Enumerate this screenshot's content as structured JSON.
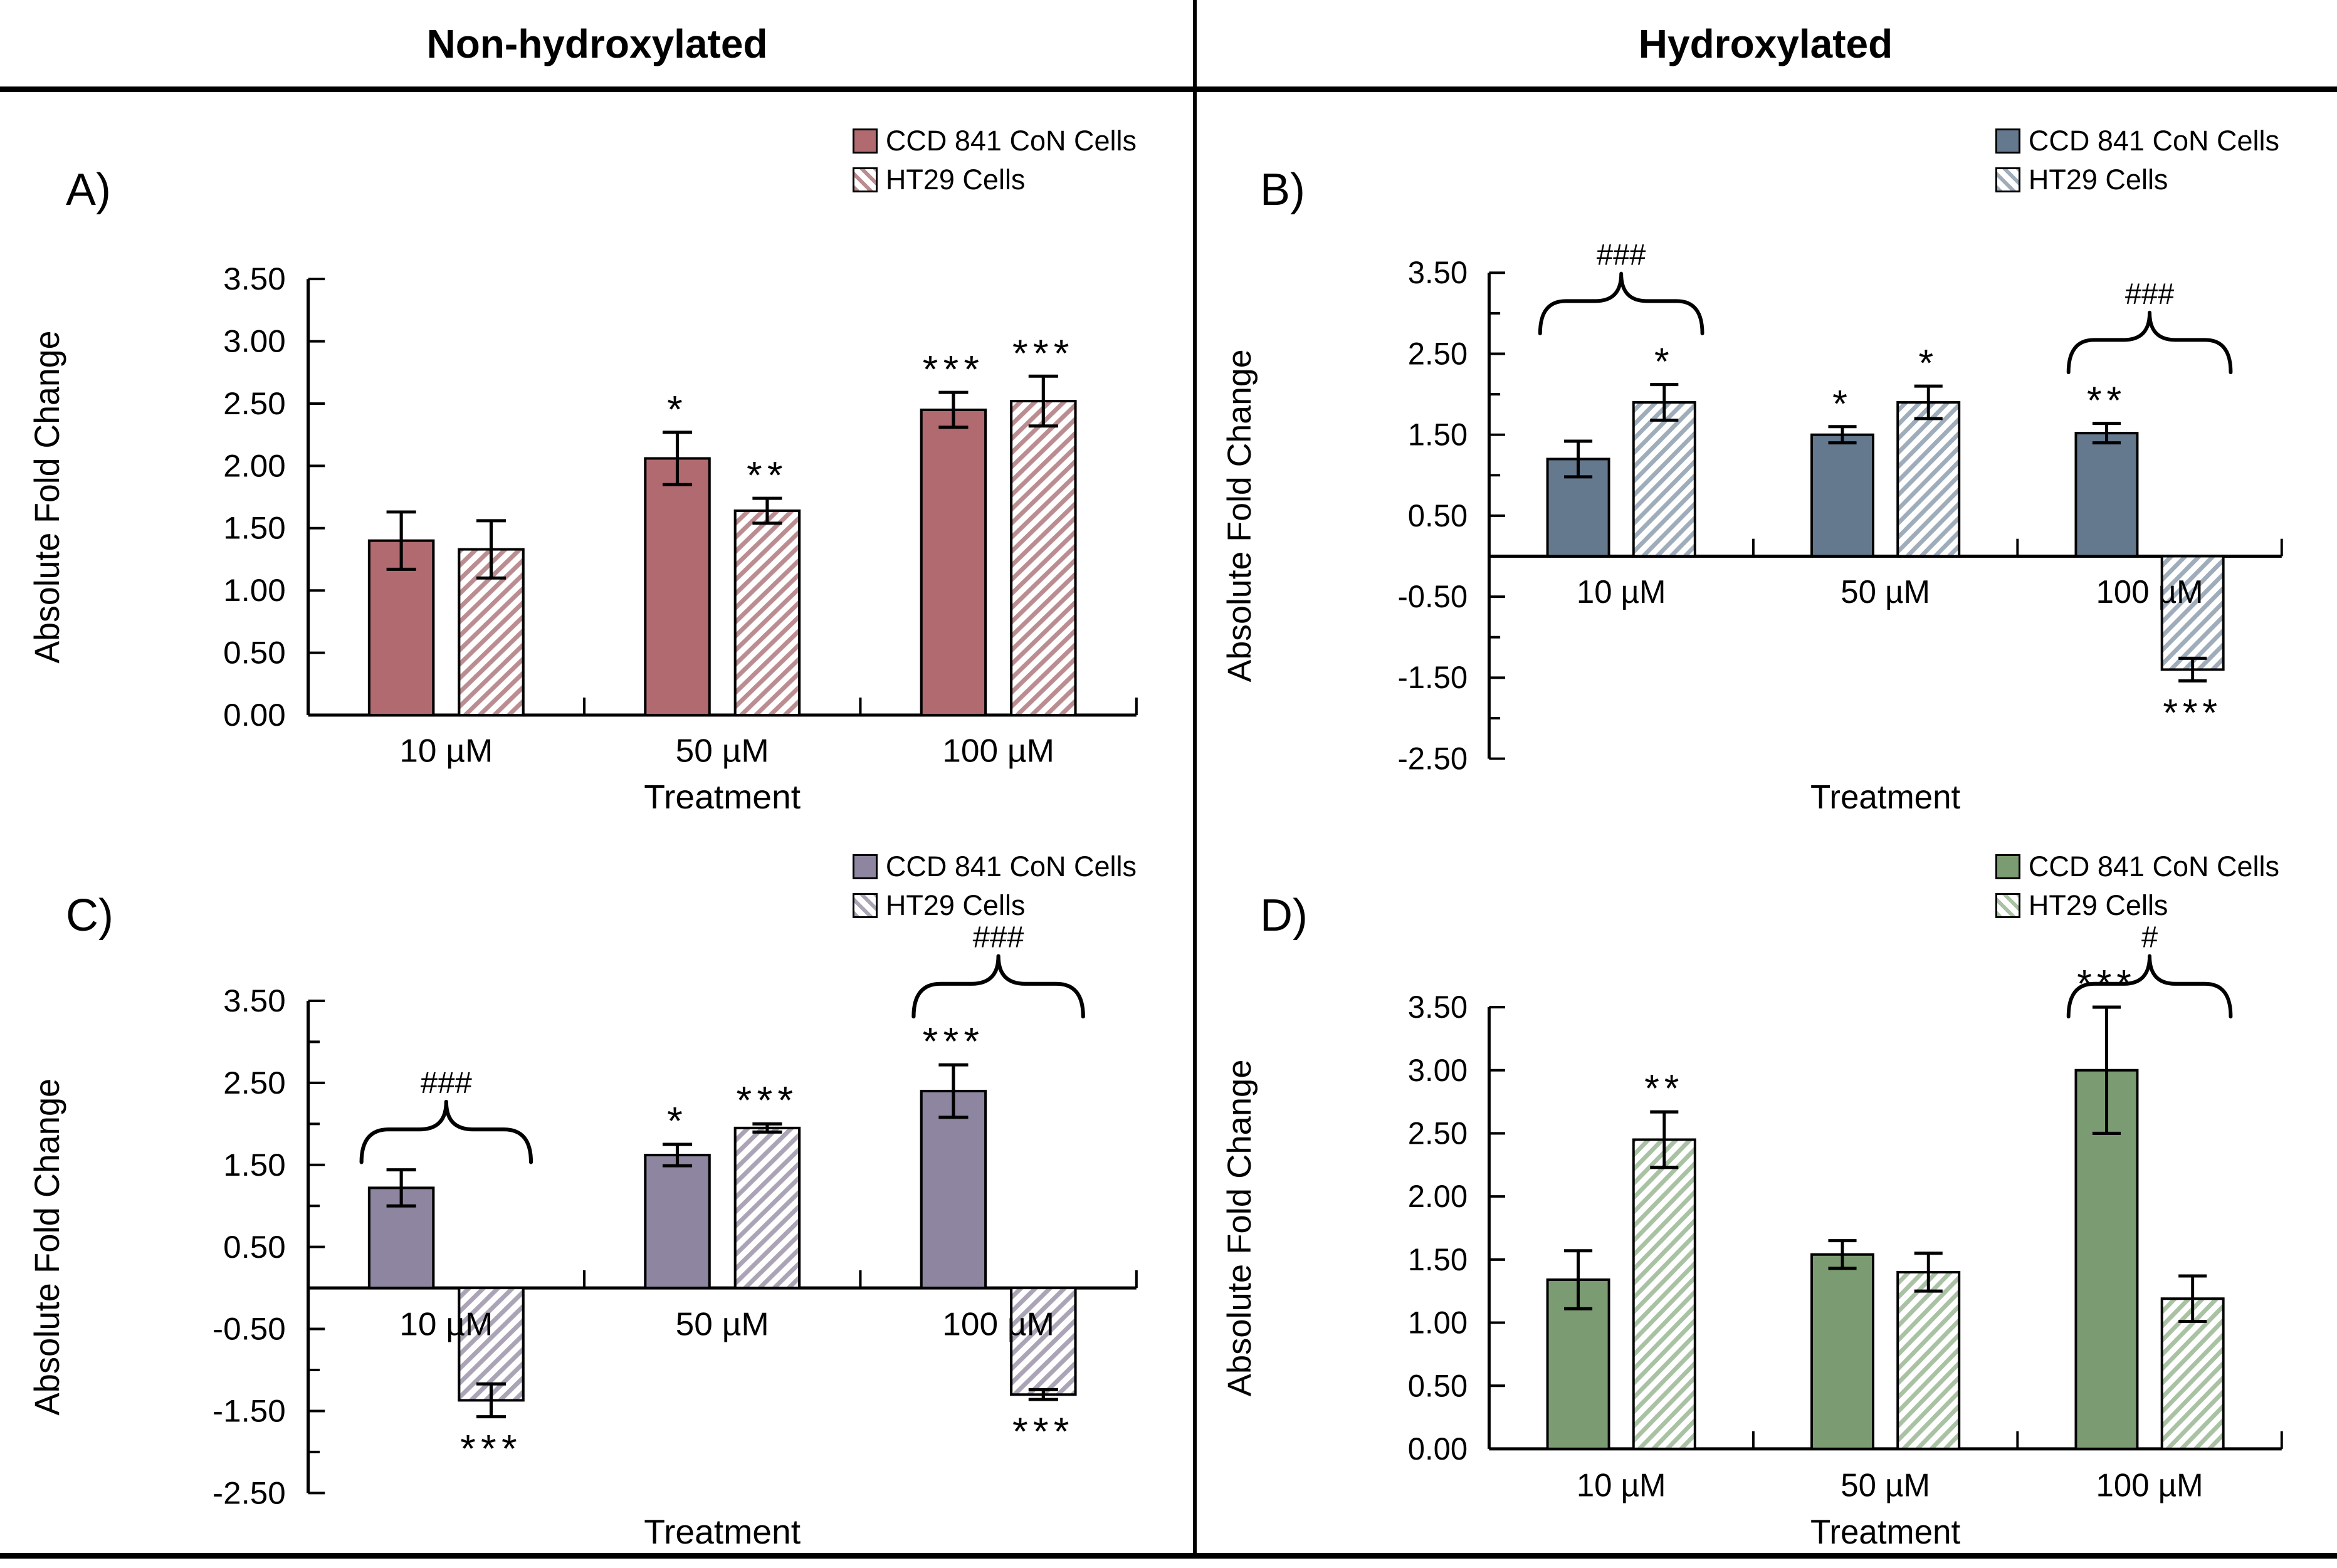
{
  "figure": {
    "column_headers": [
      "Non-hydroxylated",
      "Hydroxylated"
    ],
    "x_axis_title": "Treatment",
    "y_axis_title": "Absolute Fold Change",
    "legend_labels": [
      "CCD 841 CoN Cells",
      "HT29 Cells"
    ],
    "significance_symbols": {
      "star": "*",
      "hash": "#"
    }
  },
  "chart_data": [
    {
      "type": "bar",
      "panel_label": "A)",
      "column": "Non-hydroxylated",
      "xlabel": "Treatment",
      "ylabel": "Absolute Fold Change",
      "categories": [
        "10 µM",
        "50 µM",
        "100 µM"
      ],
      "ylim": [
        0,
        3.5
      ],
      "ytick_step": 0.5,
      "grid": false,
      "legend_position": "top-right",
      "colors": {
        "solid": "#b16b70",
        "hatch_stripe": "#bb8d90"
      },
      "series": [
        {
          "name": "CCD 841 CoN Cells",
          "style": "solid",
          "values": [
            1.4,
            2.06,
            2.45
          ],
          "errors": [
            0.23,
            0.21,
            0.14
          ],
          "sig": [
            "",
            "*",
            "***"
          ]
        },
        {
          "name": "HT29 Cells",
          "style": "hatched",
          "values": [
            1.33,
            1.64,
            2.52
          ],
          "errors": [
            0.23,
            0.1,
            0.2
          ],
          "sig": [
            "",
            "**",
            "***"
          ]
        }
      ],
      "brackets": []
    },
    {
      "type": "bar",
      "panel_label": "B)",
      "column": "Hydroxylated",
      "xlabel": "Treatment",
      "ylabel": "Absolute Fold Change",
      "categories": [
        "10 µM",
        "50 µM",
        "100 µM"
      ],
      "ylim": [
        -2.5,
        3.5
      ],
      "ytick_step": 1.0,
      "grid": false,
      "legend_position": "top-right",
      "colors": {
        "solid": "#64788e",
        "hatch_stripe": "#9fadbb"
      },
      "series": [
        {
          "name": "CCD 841 CoN Cells",
          "style": "solid",
          "values": [
            1.2,
            1.5,
            1.52
          ],
          "errors": [
            0.22,
            0.1,
            0.12
          ],
          "sig": [
            "",
            "*",
            "**"
          ]
        },
        {
          "name": "HT29 Cells",
          "style": "hatched",
          "values": [
            1.9,
            1.9,
            -1.4
          ],
          "errors": [
            0.22,
            0.2,
            0.14
          ],
          "sig": [
            "*",
            "*",
            "***"
          ]
        }
      ],
      "brackets": [
        {
          "group": 0,
          "label": "###"
        },
        {
          "group": 2,
          "label": "###"
        }
      ]
    },
    {
      "type": "bar",
      "panel_label": "C)",
      "column": "Non-hydroxylated",
      "xlabel": "Treatment",
      "ylabel": "Absolute Fold Change",
      "categories": [
        "10 µM",
        "50 µM",
        "100 µM"
      ],
      "ylim": [
        -2.5,
        3.5
      ],
      "ytick_step": 1.0,
      "grid": false,
      "legend_position": "top-right",
      "colors": {
        "solid": "#8e86a0",
        "hatch_stripe": "#aba4b6"
      },
      "series": [
        {
          "name": "CCD 841 CoN Cells",
          "style": "solid",
          "values": [
            1.22,
            1.62,
            2.4
          ],
          "errors": [
            0.22,
            0.13,
            0.32
          ],
          "sig": [
            "",
            "*",
            "***"
          ]
        },
        {
          "name": "HT29 Cells",
          "style": "hatched",
          "values": [
            -1.37,
            1.95,
            -1.3
          ],
          "errors": [
            0.2,
            0.05,
            0.06
          ],
          "sig": [
            "***",
            "***",
            "***"
          ]
        }
      ],
      "brackets": [
        {
          "group": 0,
          "label": "###"
        },
        {
          "group": 2,
          "label": "###"
        }
      ]
    },
    {
      "type": "bar",
      "panel_label": "D)",
      "column": "Hydroxylated",
      "xlabel": "Treatment",
      "ylabel": "Absolute Fold Change",
      "categories": [
        "10 µM",
        "50 µM",
        "100 µM"
      ],
      "ylim": [
        0,
        3.5
      ],
      "ytick_step": 0.5,
      "grid": false,
      "legend_position": "top-right",
      "colors": {
        "solid": "#7b9c72",
        "hatch_stripe": "#aac2a4"
      },
      "series": [
        {
          "name": "CCD 841 CoN Cells",
          "style": "solid",
          "values": [
            1.34,
            1.54,
            3.0
          ],
          "errors": [
            0.23,
            0.11,
            0.5
          ],
          "sig": [
            "",
            "",
            "***"
          ]
        },
        {
          "name": "HT29 Cells",
          "style": "hatched",
          "values": [
            2.45,
            1.4,
            1.19
          ],
          "errors": [
            0.22,
            0.15,
            0.18
          ],
          "sig": [
            "**",
            "",
            ""
          ]
        }
      ],
      "brackets": [
        {
          "group": 2,
          "label": "#"
        }
      ]
    }
  ]
}
